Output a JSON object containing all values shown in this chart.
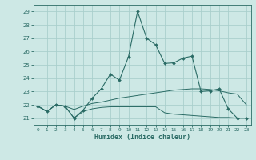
{
  "xlabel": "Humidex (Indice chaleur)",
  "ylabel": "",
  "xlim": [
    -0.5,
    23.5
  ],
  "ylim": [
    20.5,
    29.5
  ],
  "yticks": [
    21,
    22,
    23,
    24,
    25,
    26,
    27,
    28,
    29
  ],
  "xticks": [
    0,
    1,
    2,
    3,
    4,
    5,
    6,
    7,
    8,
    9,
    10,
    11,
    12,
    13,
    14,
    15,
    16,
    17,
    18,
    19,
    20,
    21,
    22,
    23
  ],
  "background_color": "#cde8e5",
  "grid_color": "#aacfcc",
  "line_color": "#2a6b65",
  "line1": {
    "x": [
      0,
      1,
      2,
      3,
      4,
      5,
      6,
      7,
      8,
      9,
      10,
      11,
      12,
      13,
      14,
      15,
      16,
      17,
      18,
      19,
      20,
      21,
      22,
      23
    ],
    "y": [
      21.9,
      21.5,
      22.0,
      21.9,
      21.0,
      21.6,
      22.5,
      23.2,
      24.3,
      23.85,
      25.6,
      29.0,
      27.0,
      26.5,
      25.1,
      25.15,
      25.5,
      25.65,
      23.0,
      23.05,
      23.2,
      21.7,
      21.0,
      21.0
    ]
  },
  "line2": {
    "x": [
      0,
      1,
      2,
      3,
      4,
      5,
      6,
      7,
      8,
      9,
      10,
      11,
      12,
      13,
      14,
      15,
      16,
      17,
      18,
      19,
      20,
      21,
      22,
      23
    ],
    "y": [
      21.9,
      21.5,
      22.0,
      21.9,
      21.65,
      21.9,
      22.1,
      22.2,
      22.35,
      22.5,
      22.6,
      22.7,
      22.8,
      22.9,
      23.0,
      23.1,
      23.15,
      23.2,
      23.2,
      23.15,
      23.05,
      22.9,
      22.8,
      22.0
    ]
  },
  "line3": {
    "x": [
      0,
      1,
      2,
      3,
      4,
      5,
      6,
      7,
      8,
      9,
      10,
      11,
      12,
      13,
      14,
      15,
      16,
      17,
      18,
      19,
      20,
      21,
      22,
      23
    ],
    "y": [
      21.9,
      21.5,
      22.0,
      21.9,
      21.0,
      21.5,
      21.7,
      21.8,
      21.85,
      21.85,
      21.85,
      21.85,
      21.85,
      21.85,
      21.4,
      21.3,
      21.25,
      21.2,
      21.15,
      21.1,
      21.05,
      21.05,
      21.0,
      21.0
    ]
  }
}
